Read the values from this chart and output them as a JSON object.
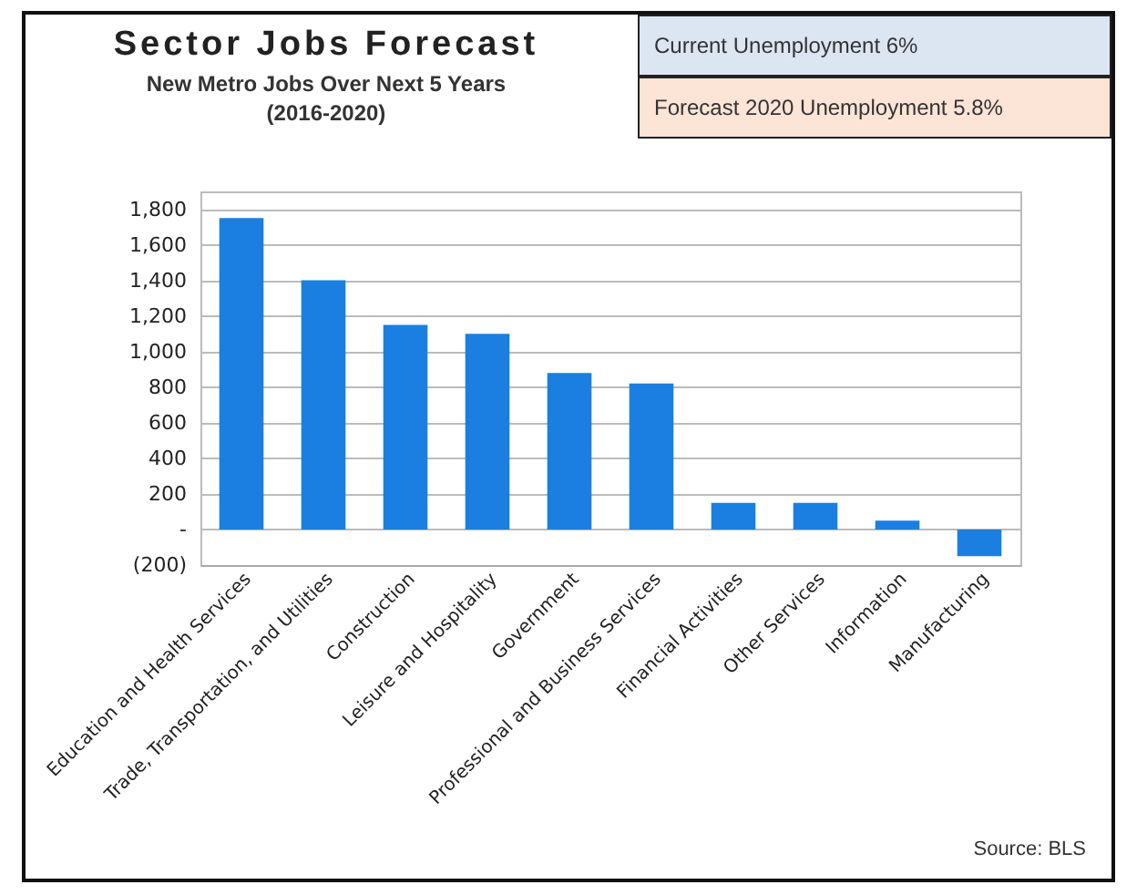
{
  "chart_data": {
    "type": "bar",
    "title": "Sector Jobs Forecast",
    "subtitle": "New Metro Jobs Over Next 5 Years (2016-2020)",
    "categories": [
      "Education and Health Services",
      "Trade, Transportation, and Utilities",
      "Construction",
      "Leisure and Hospitality",
      "Government",
      "Professional and Business Services",
      "Financial Activities",
      "Other Services",
      "Information",
      "Manufacturing"
    ],
    "values": [
      1750,
      1400,
      1150,
      1100,
      880,
      820,
      150,
      150,
      50,
      -150
    ],
    "color": "#1a7fe0",
    "ylim": [
      -200,
      1900
    ],
    "yticks": [
      {
        "value": -200,
        "label": "(200)"
      },
      {
        "value": 0,
        "label": "-"
      },
      {
        "value": 200,
        "label": "200"
      },
      {
        "value": 400,
        "label": "400"
      },
      {
        "value": 600,
        "label": "600"
      },
      {
        "value": 800,
        "label": "800"
      },
      {
        "value": 1000,
        "label": "1,000"
      },
      {
        "value": 1200,
        "label": "1,200"
      },
      {
        "value": 1400,
        "label": "1,400"
      },
      {
        "value": 1600,
        "label": "1,600"
      },
      {
        "value": 1800,
        "label": "1,800"
      }
    ],
    "grid": "y",
    "annotations": [
      "Current Unemployment 6%",
      "Forecast 2020 Unemployment 5.8%",
      "Source: BLS"
    ]
  }
}
